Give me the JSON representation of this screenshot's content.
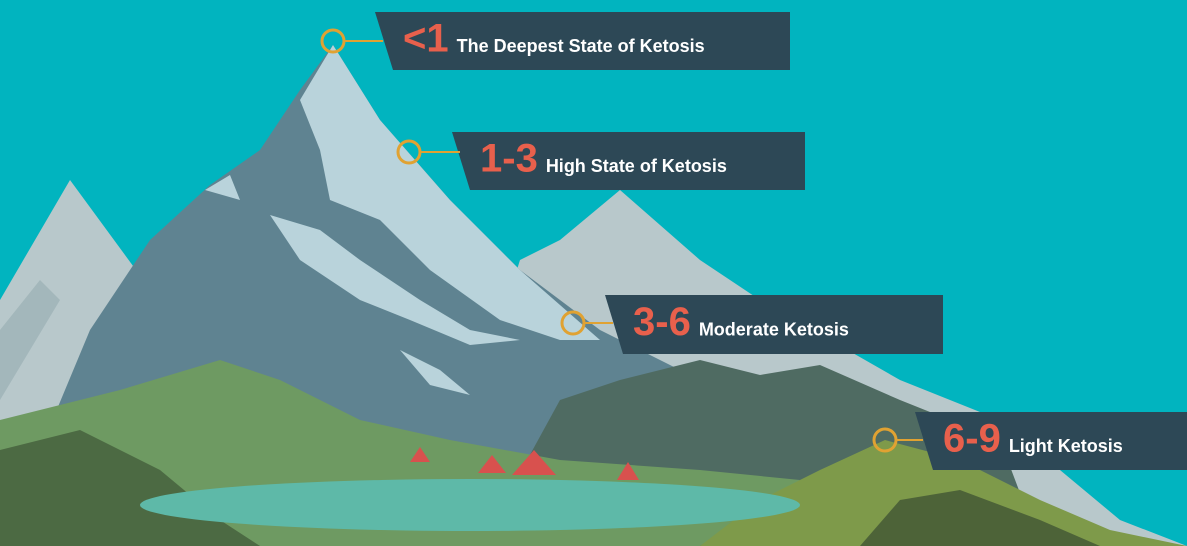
{
  "labels": [
    {
      "number": "<1",
      "text": "The Deepest State of Ketosis"
    },
    {
      "number": "1-3",
      "text": "High State of Ketosis"
    },
    {
      "number": "3-6",
      "text": "Moderate Ketosis"
    },
    {
      "number": "6-9",
      "text": "Light Ketosis"
    }
  ]
}
